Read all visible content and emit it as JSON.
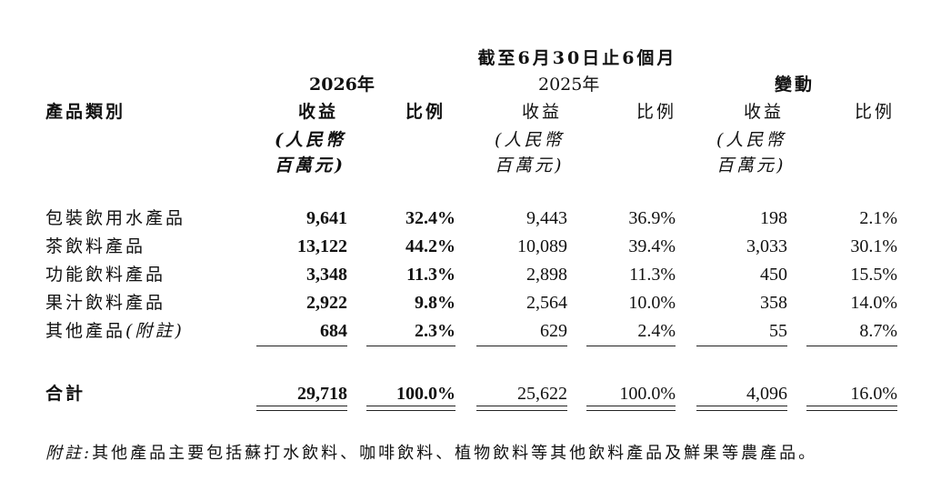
{
  "header": {
    "period": "截至6月30日止6個月",
    "year_2026": "2026年",
    "year_2025": "2025年",
    "change": "變動",
    "category_label": "產品類別",
    "revenue": "收益",
    "ratio": "比例",
    "unit_line1": "(人民幣",
    "unit_line2": "百萬元)"
  },
  "rows": [
    {
      "name": "包裝飲用水產品",
      "rev2026": "9,641",
      "pct2026": "32.4%",
      "rev2025": "9,443",
      "pct2025": "36.9%",
      "chg": "198",
      "chgpct": "2.1%"
    },
    {
      "name": "茶飲料產品",
      "rev2026": "13,122",
      "pct2026": "44.2%",
      "rev2025": "10,089",
      "pct2025": "39.4%",
      "chg": "3,033",
      "chgpct": "30.1%"
    },
    {
      "name": "功能飲料產品",
      "rev2026": "3,348",
      "pct2026": "11.3%",
      "rev2025": "2,898",
      "pct2025": "11.3%",
      "chg": "450",
      "chgpct": "15.5%"
    },
    {
      "name": "果汁飲料產品",
      "rev2026": "2,922",
      "pct2026": "9.8%",
      "rev2025": "2,564",
      "pct2025": "10.0%",
      "chg": "358",
      "chgpct": "14.0%"
    },
    {
      "name": "其他產品",
      "name_note": "(附註)",
      "rev2026": "684",
      "pct2026": "2.3%",
      "rev2025": "629",
      "pct2025": "2.4%",
      "chg": "55",
      "chgpct": "8.7%"
    }
  ],
  "total": {
    "name": "合計",
    "rev2026": "29,718",
    "pct2026": "100.0%",
    "rev2025": "25,622",
    "pct2025": "100.0%",
    "chg": "4,096",
    "chgpct": "16.0%"
  },
  "footnote": {
    "label": "附註:",
    "text": "其他產品主要包括蘇打水飲料、咖啡飲料、植物飲料等其他飲料產品及鮮果等農產品。"
  }
}
